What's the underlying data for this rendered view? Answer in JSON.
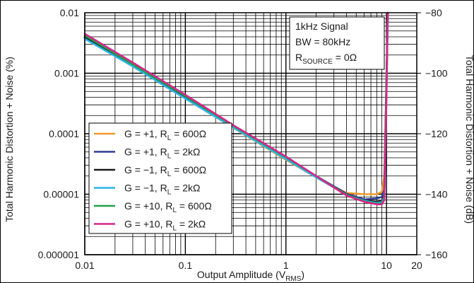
{
  "chart_data": {
    "type": "line",
    "xlabel": "Output Amplitude (V",
    "xlabel_sub": "RMS",
    "xlabel_end": ")",
    "ylabel": "Total Harmonic Distortion + Noise (%)",
    "ylabel_right": "Total Harmonic Distortion + Noise (dB)",
    "x_scale": "log",
    "y_scale": "log",
    "xlim": [
      0.01,
      20
    ],
    "ylim": [
      1e-06,
      0.01
    ],
    "y2lim": [
      -160,
      -80
    ],
    "grid": true,
    "x_ticks": [
      {
        "value": 0.01,
        "label": "0.01"
      },
      {
        "value": 0.1,
        "label": "0.1"
      },
      {
        "value": 1,
        "label": "1"
      },
      {
        "value": 10,
        "label": "10"
      },
      {
        "value": 20,
        "label": "20"
      }
    ],
    "y_ticks": [
      {
        "value": 0.01,
        "label": "0.01"
      },
      {
        "value": 0.001,
        "label": "0.001"
      },
      {
        "value": 0.0001,
        "label": "0.0001"
      },
      {
        "value": 1e-05,
        "label": "0.00001"
      },
      {
        "value": 1e-06,
        "label": "0.000001"
      }
    ],
    "y2_ticks": [
      {
        "value": -80,
        "label": "−80"
      },
      {
        "value": -100,
        "label": "−100"
      },
      {
        "value": -120,
        "label": "−120"
      },
      {
        "value": -140,
        "label": "−140"
      },
      {
        "value": -160,
        "label": "−160"
      }
    ],
    "annotations": [
      {
        "text": "1kHz Signal"
      },
      {
        "text": "BW = 80kHz"
      },
      {
        "main": "R",
        "sub": "SOURCE",
        "rest": " = 0Ω"
      }
    ],
    "legend_position": "bottom-left",
    "series": [
      {
        "name": "G = +1, R",
        "sub": "L",
        "tail": " = 600Ω",
        "color": "#f39a2c",
        "x": [
          0.01,
          0.03,
          0.1,
          0.3,
          1,
          2,
          4,
          6,
          8,
          9,
          9.5,
          10,
          10.3
        ],
        "y": [
          0.0038,
          0.0013,
          0.00038,
          0.000125,
          3.7e-05,
          1.9e-05,
          1.05e-05,
          1e-05,
          1e-05,
          1.1e-05,
          2e-05,
          0.001,
          0.01
        ]
      },
      {
        "name": "G = +1, R",
        "sub": "L",
        "tail": " = 2kΩ",
        "color": "#2e3d8f",
        "x": [
          0.01,
          0.03,
          0.1,
          0.3,
          1,
          2,
          4,
          6,
          8,
          9,
          9.5,
          10,
          10.3
        ],
        "y": [
          0.004,
          0.00135,
          0.0004,
          0.00013,
          4e-05,
          2e-05,
          1.02e-05,
          8.2e-06,
          8.5e-06,
          9e-06,
          1.2e-05,
          0.0008,
          0.01
        ]
      },
      {
        "name": "G = −1, R",
        "sub": "L",
        "tail": " = 600Ω",
        "color": "#1a1a1a",
        "x": [
          0.01,
          0.03,
          0.1,
          0.3,
          1,
          2,
          4,
          6,
          8,
          9,
          9.5,
          10,
          10.3
        ],
        "y": [
          0.0039,
          0.00132,
          0.00039,
          0.000128,
          3.9e-05,
          1.95e-05,
          9.8e-06,
          7.9e-06,
          7.5e-06,
          7.8e-06,
          9.5e-06,
          0.0007,
          0.01
        ]
      },
      {
        "name": "G = −1, R",
        "sub": "L",
        "tail": " = 2kΩ",
        "color": "#2bb5e6",
        "x": [
          0.01,
          0.03,
          0.1,
          0.3,
          1,
          2,
          4,
          6,
          8,
          9,
          9.5,
          10,
          10.3
        ],
        "y": [
          0.0037,
          0.0013,
          0.00038,
          0.000126,
          3.8e-05,
          1.9e-05,
          9.8e-06,
          7.8e-06,
          7.2e-06,
          7.4e-06,
          9e-06,
          0.0006,
          0.01
        ]
      },
      {
        "name": "G = +10, R",
        "sub": "L",
        "tail": " = 600Ω",
        "color": "#22a04b",
        "x": [
          0.01,
          0.03,
          0.1,
          0.3,
          1,
          2,
          4,
          6,
          8,
          9,
          9.5,
          10,
          10.3
        ],
        "y": [
          0.0042,
          0.0014,
          0.00042,
          0.000135,
          4.1e-05,
          2e-05,
          9.8e-06,
          7.6e-06,
          7e-06,
          7e-06,
          8.5e-06,
          0.0005,
          0.01
        ]
      },
      {
        "name": "G = +10, R",
        "sub": "L",
        "tail": " = 2kΩ",
        "color": "#d6268c",
        "x": [
          0.01,
          0.03,
          0.1,
          0.3,
          1,
          2,
          4,
          6,
          8,
          9,
          9.5,
          10,
          10.3
        ],
        "y": [
          0.0045,
          0.0015,
          0.00044,
          0.000138,
          4.2e-05,
          2e-05,
          9.5e-06,
          7.5e-06,
          6.8e-06,
          6.8e-06,
          8e-06,
          0.0004,
          0.01
        ]
      }
    ]
  }
}
